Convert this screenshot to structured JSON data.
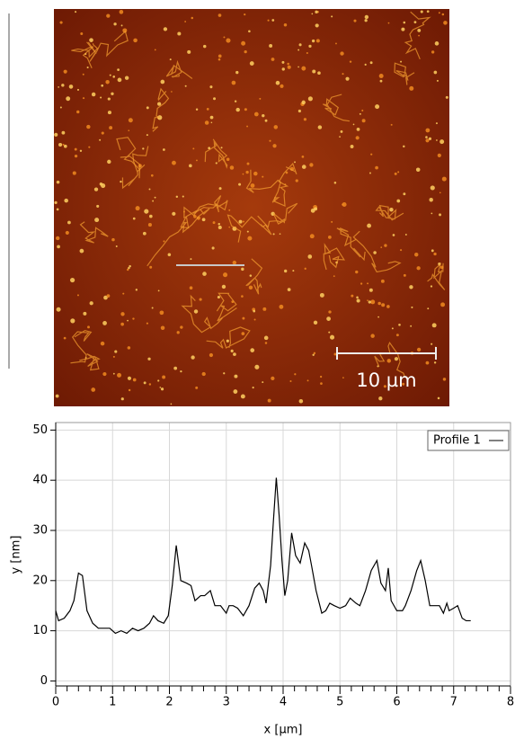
{
  "image": {
    "scale_bar_label": "10 µm"
  },
  "chart_data": {
    "type": "line",
    "x_label": "x [µm]",
    "y_label": "y [nm]",
    "xlim": [
      0,
      8
    ],
    "xticks": [
      0,
      1,
      2,
      3,
      4,
      5,
      6,
      7,
      8
    ],
    "ylim": [
      -1,
      51.5
    ],
    "yticks": [
      0,
      10,
      20,
      30,
      40,
      50
    ],
    "grid": true,
    "legend": "top-right",
    "series": [
      {
        "name": "Profile 1",
        "color": "#000000",
        "x": [
          0,
          0.05,
          0.15,
          0.25,
          0.32,
          0.4,
          0.47,
          0.55,
          0.65,
          0.75,
          0.85,
          0.95,
          1.05,
          1.15,
          1.25,
          1.35,
          1.45,
          1.55,
          1.65,
          1.72,
          1.8,
          1.9,
          1.98,
          2.05,
          2.12,
          2.2,
          2.3,
          2.38,
          2.45,
          2.55,
          2.62,
          2.72,
          2.8,
          2.9,
          3.0,
          3.05,
          3.12,
          3.2,
          3.3,
          3.4,
          3.5,
          3.58,
          3.65,
          3.7,
          3.78,
          3.83,
          3.88,
          3.93,
          3.98,
          4.03,
          4.08,
          4.15,
          4.22,
          4.3,
          4.38,
          4.45,
          4.5,
          4.58,
          4.68,
          4.75,
          4.82,
          4.9,
          5.0,
          5.1,
          5.18,
          5.28,
          5.35,
          5.45,
          5.55,
          5.65,
          5.72,
          5.8,
          5.85,
          5.9,
          6.0,
          6.1,
          6.15,
          6.25,
          6.35,
          6.42,
          6.5,
          6.58,
          6.65,
          6.75,
          6.82,
          6.88,
          6.92,
          7.0,
          7.07,
          7.15,
          7.22,
          7.3
        ],
        "values": [
          14,
          12,
          12.5,
          14,
          16,
          21.5,
          21,
          14,
          11.5,
          10.5,
          10.5,
          10.5,
          9.5,
          10,
          9.5,
          10.5,
          10,
          10.5,
          11.5,
          13,
          12,
          11.5,
          13,
          19,
          27,
          20,
          19.5,
          19,
          16,
          17,
          17,
          18,
          15,
          15,
          13.5,
          15,
          15,
          14.5,
          13,
          15,
          18.5,
          19.5,
          18,
          15.5,
          23,
          32,
          40.5,
          33,
          24,
          17,
          20,
          29.5,
          25,
          23.5,
          27.5,
          26,
          23,
          18,
          13.5,
          14,
          15.5,
          15,
          14.5,
          15,
          16.5,
          15.5,
          15,
          18,
          22,
          24,
          19.5,
          18,
          22.5,
          16,
          14,
          14,
          15,
          18,
          22,
          24,
          20,
          15,
          15,
          15,
          13.5,
          15.5,
          14,
          14.5,
          15,
          12.5,
          12,
          12
        ]
      }
    ]
  }
}
